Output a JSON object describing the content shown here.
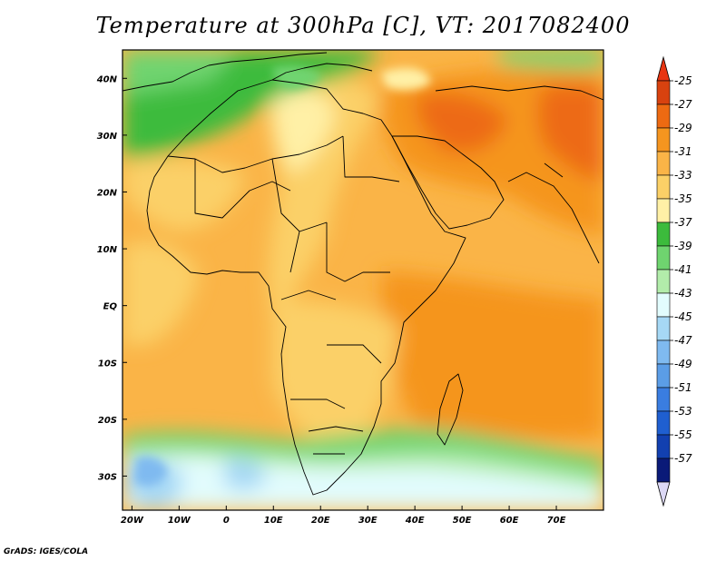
{
  "title": "Temperature at 300hPa [C], VT: 2017082400",
  "credit": "GrADS: IGES/COLA",
  "map": {
    "region": "Africa and Middle East",
    "variable": "Temperature at 300hPa",
    "units": "C",
    "valid_time": "2017082400",
    "lon_range": [
      -22,
      80
    ],
    "lat_range": [
      -36,
      45
    ],
    "lat_ticks": [
      {
        "lat": 40,
        "label": "40N"
      },
      {
        "lat": 30,
        "label": "30N"
      },
      {
        "lat": 20,
        "label": "20N"
      },
      {
        "lat": 10,
        "label": "10N"
      },
      {
        "lat": 0,
        "label": "EQ"
      },
      {
        "lat": -10,
        "label": "10S"
      },
      {
        "lat": -20,
        "label": "20S"
      },
      {
        "lat": -30,
        "label": "30S"
      }
    ],
    "lon_ticks": [
      {
        "lon": -20,
        "label": "20W"
      },
      {
        "lon": -10,
        "label": "10W"
      },
      {
        "lon": 0,
        "label": "0"
      },
      {
        "lon": 10,
        "label": "10E"
      },
      {
        "lon": 20,
        "label": "20E"
      },
      {
        "lon": 30,
        "label": "30E"
      },
      {
        "lon": 40,
        "label": "40E"
      },
      {
        "lon": 50,
        "label": "50E"
      },
      {
        "lon": 60,
        "label": "60E"
      },
      {
        "lon": 70,
        "label": "70E"
      }
    ]
  },
  "colorbar": {
    "labels": [
      "-25",
      "-27",
      "-29",
      "-31",
      "-33",
      "-35",
      "-37",
      "-39",
      "-41",
      "-43",
      "-45",
      "-47",
      "-49",
      "-51",
      "-53",
      "-55",
      "-57"
    ],
    "colors": [
      "#d8420f",
      "#ed6a12",
      "#f5951f",
      "#fab447",
      "#fbd067",
      "#fff0a6",
      "#3cbb3c",
      "#6fd46f",
      "#b2ecaa",
      "#e2fcfd",
      "#a6d8f5",
      "#7fbaf0",
      "#5b9de6",
      "#3a7de0",
      "#1f5fd0",
      "#1240b0",
      "#0a1a78"
    ],
    "top_color": "#e83512",
    "bottom_color": "#dcd8f5"
  }
}
